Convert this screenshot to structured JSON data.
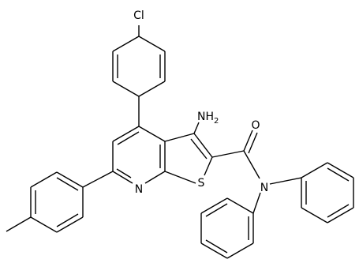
{
  "atoms": [
    {
      "label": "Cl"
    },
    {
      "label": "NH",
      "subscript": "2"
    },
    {
      "label": "O"
    },
    {
      "label": "N"
    },
    {
      "label": "N"
    },
    {
      "label": "S"
    }
  ]
}
